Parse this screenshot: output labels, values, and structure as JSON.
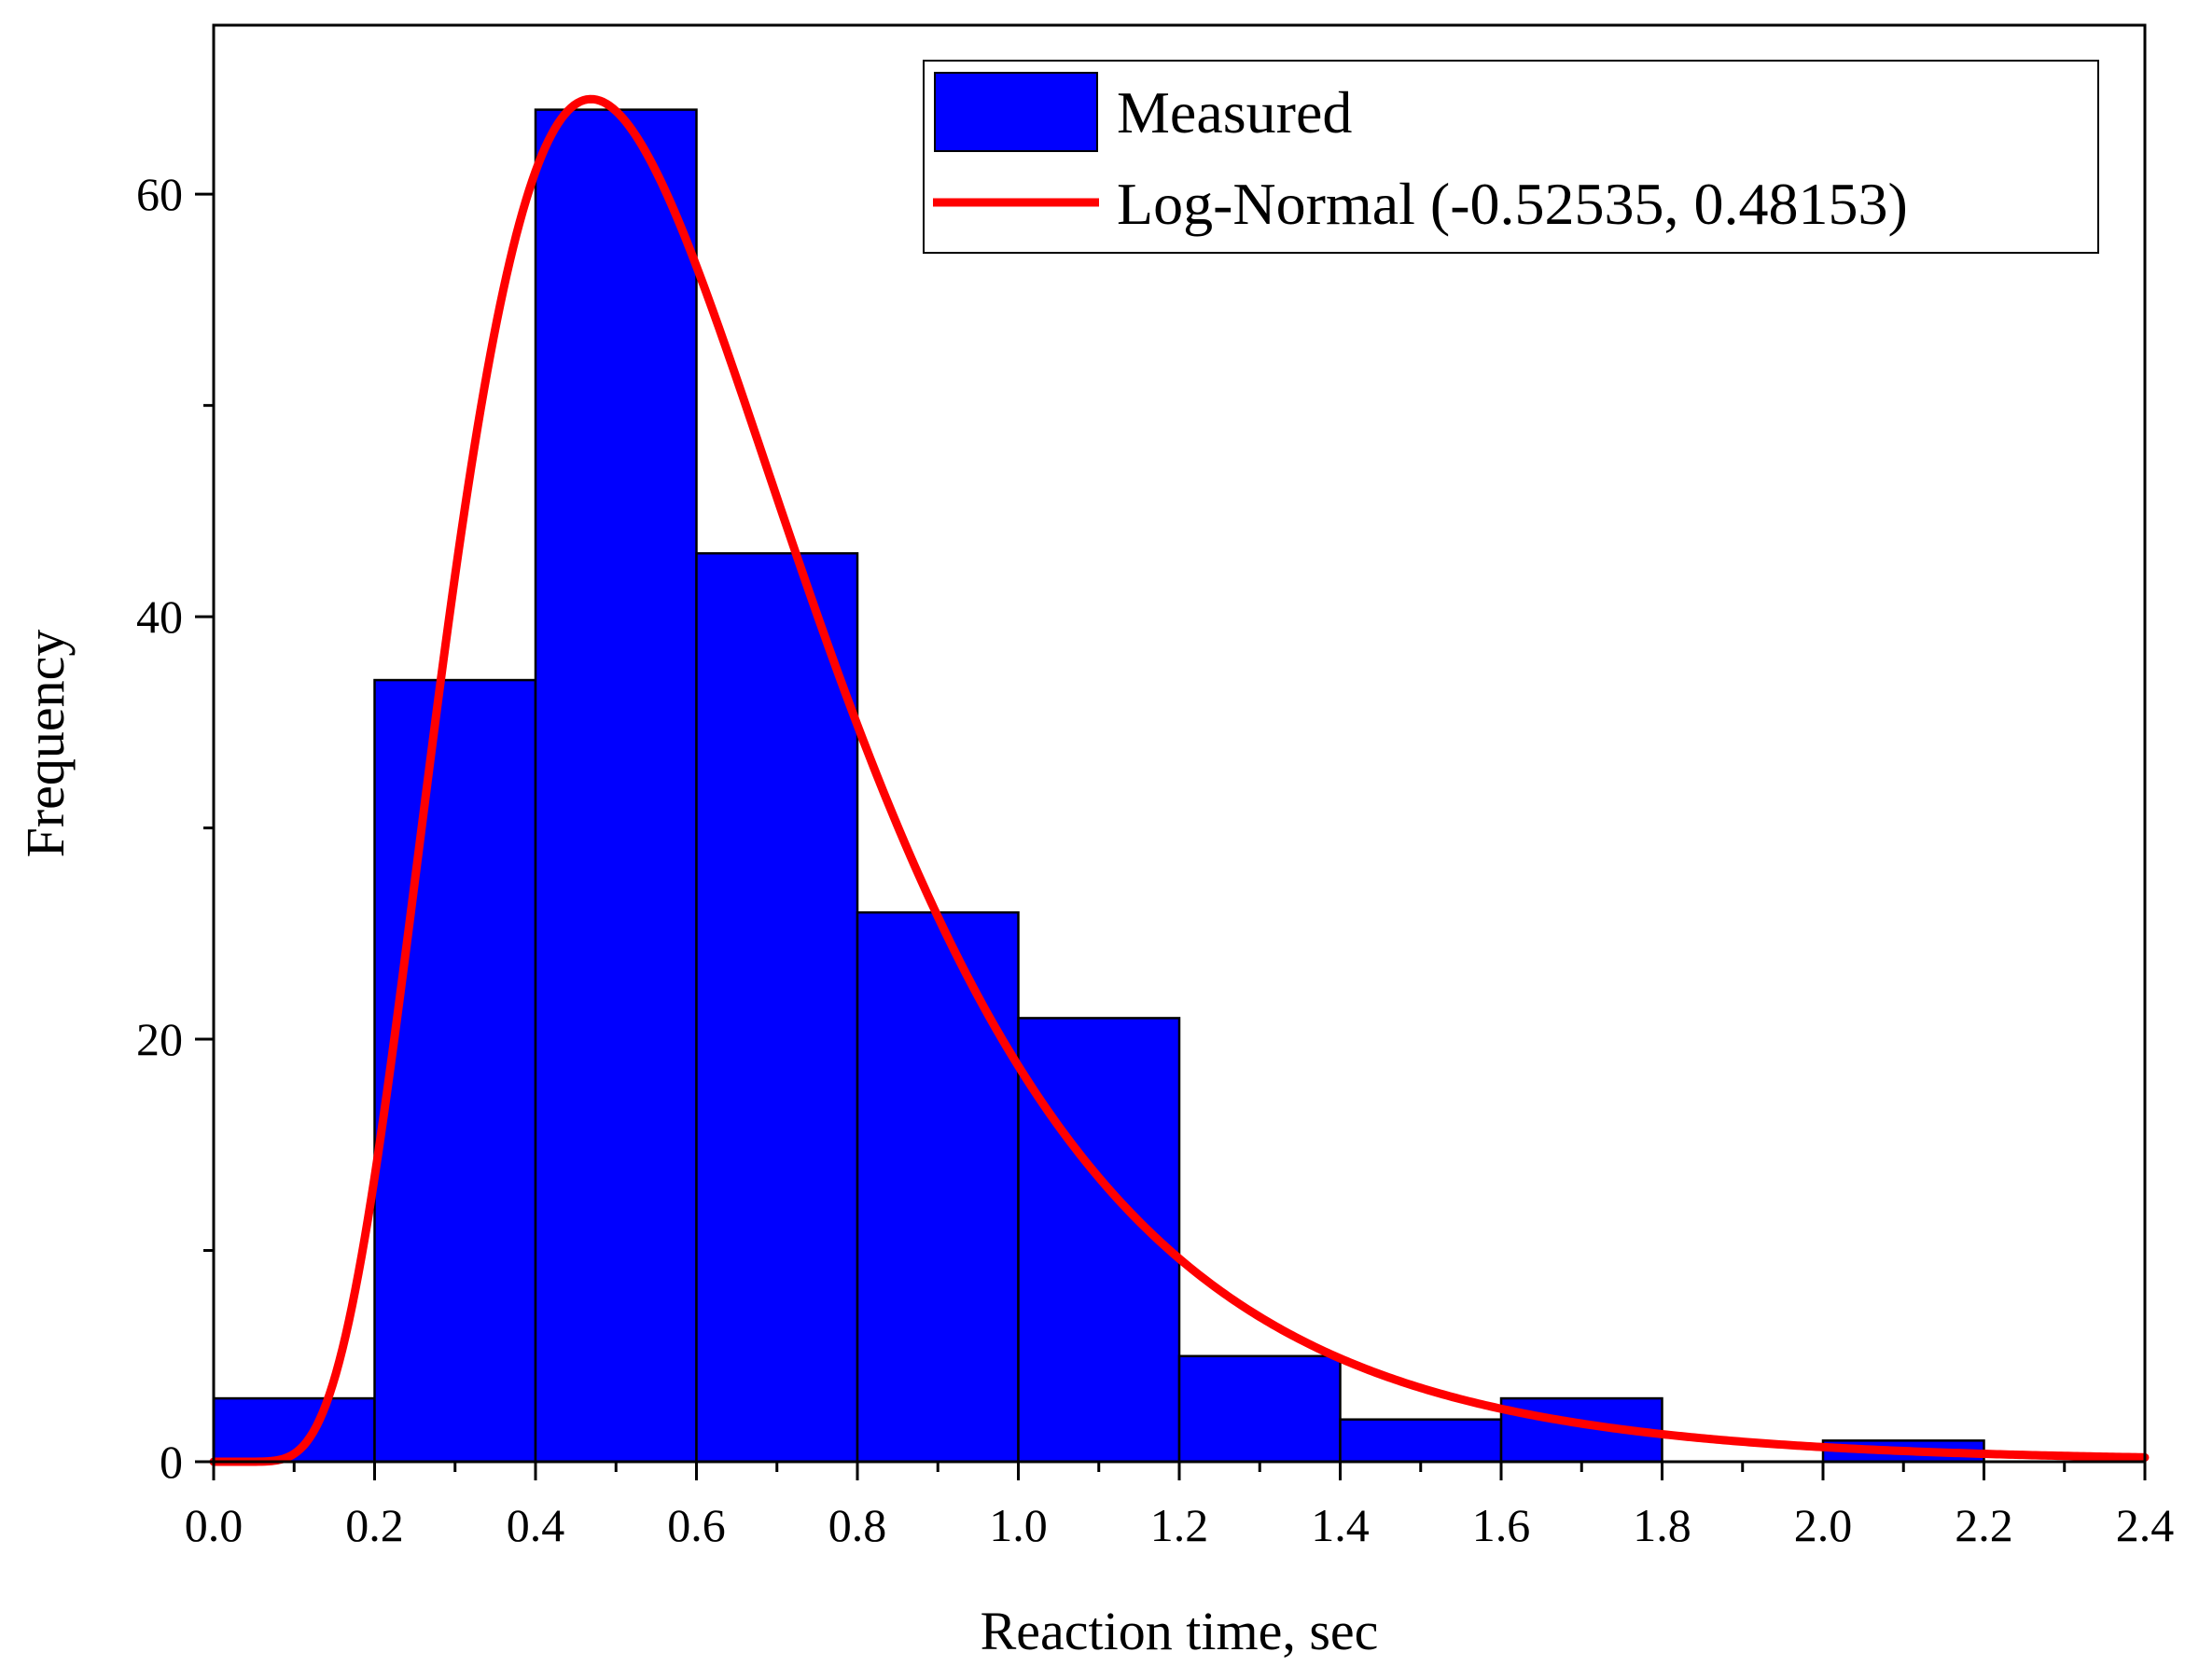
{
  "chart_data": {
    "type": "bar",
    "title": "",
    "xlabel": "Reaction time, sec",
    "ylabel": "Frequency",
    "xlim": [
      0,
      2.4
    ],
    "ylim": [
      0,
      68
    ],
    "x_ticks": [
      "0.0",
      "0.2",
      "0.4",
      "0.6",
      "0.8",
      "1.0",
      "1.2",
      "1.4",
      "1.6",
      "1.8",
      "2.0",
      "2.2",
      "2.4"
    ],
    "y_ticks": [
      "0",
      "20",
      "40",
      "60"
    ],
    "grid": false,
    "legend_position": "top-right",
    "bins": [
      {
        "x0": 0.0,
        "x1": 0.2,
        "value": 3
      },
      {
        "x0": 0.2,
        "x1": 0.4,
        "value": 37
      },
      {
        "x0": 0.4,
        "x1": 0.6,
        "value": 64
      },
      {
        "x0": 0.6,
        "x1": 0.8,
        "value": 43
      },
      {
        "x0": 0.8,
        "x1": 1.0,
        "value": 26
      },
      {
        "x0": 1.0,
        "x1": 1.2,
        "value": 21
      },
      {
        "x0": 1.2,
        "x1": 1.4,
        "value": 5
      },
      {
        "x0": 1.4,
        "x1": 1.6,
        "value": 2
      },
      {
        "x0": 1.6,
        "x1": 1.8,
        "value": 3
      },
      {
        "x0": 1.8,
        "x1": 2.0,
        "value": 0
      },
      {
        "x0": 2.0,
        "x1": 2.2,
        "value": 1
      },
      {
        "x0": 2.2,
        "x1": 2.4,
        "value": 0
      }
    ],
    "series": [
      {
        "name": "Measured",
        "kind": "histogram",
        "color": "#0000ff"
      },
      {
        "name": "Log-Normal (-0.52535, 0.48153)",
        "kind": "line",
        "color": "#ff0000",
        "mu": -0.52535,
        "sigma": 0.48153,
        "n": 205,
        "bin_width": 0.2
      }
    ]
  }
}
